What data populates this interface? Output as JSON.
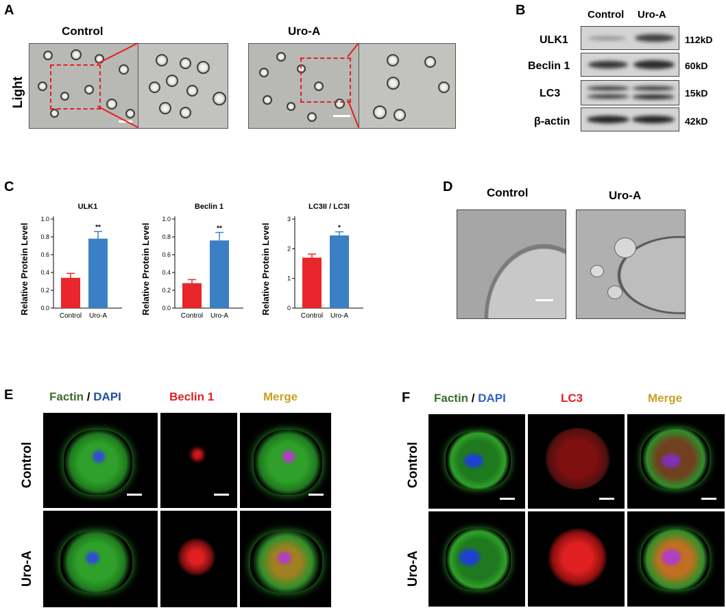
{
  "panels": {
    "A": {
      "label": "A",
      "control": "Control",
      "uroa": "Uro-A",
      "rowlabel": "Light"
    },
    "B": {
      "label": "B",
      "cols": [
        "Control",
        "Uro-A"
      ],
      "rows": [
        {
          "protein": "ULK1",
          "kd": "112kD"
        },
        {
          "protein": "Beclin 1",
          "kd": "60kD"
        },
        {
          "protein": "LC3",
          "kd": "15kD"
        },
        {
          "protein": "β-actin",
          "kd": "42kD"
        }
      ]
    },
    "C": {
      "label": "C"
    },
    "D": {
      "label": "D",
      "control": "Control",
      "uroa": "Uro-A"
    },
    "E": {
      "label": "E",
      "h_factin": "Factin",
      "h_slash": " / ",
      "h_dapi": "DAPI",
      "h_marker": "Beclin 1",
      "h_merge": "Merge",
      "row1": "Control",
      "row2": "Uro-A"
    },
    "F": {
      "label": "F",
      "h_factin": "Factin",
      "h_slash": " / ",
      "h_dapi": "DAPI",
      "h_marker": "LC3",
      "h_merge": "Merge",
      "row1": "Control",
      "row2": "Uro-A"
    }
  },
  "colors": {
    "control_bar": "#e8262b",
    "uroa_bar": "#3b7fc4",
    "factin": "#3c6e2a",
    "dapi": "#1f4e9a",
    "marker": "#e02020",
    "merge": "#c8a020"
  },
  "chart_data": [
    {
      "type": "bar",
      "title": "ULK1",
      "ylabel": "Relative Protein Level",
      "categories": [
        "Control",
        "Uro-A"
      ],
      "values": [
        0.34,
        0.78
      ],
      "errors": [
        0.05,
        0.08
      ],
      "ylim": [
        0,
        1.0
      ],
      "yticks": [
        "0.0",
        "0.2",
        "0.4",
        "0.6",
        "0.8",
        "1.0"
      ],
      "tickvals": [
        0,
        0.2,
        0.4,
        0.6,
        0.8,
        1.0
      ],
      "significance": [
        "",
        "**"
      ]
    },
    {
      "type": "bar",
      "title": "Beclin 1",
      "ylabel": "Relative Protein Level",
      "categories": [
        "Control",
        "Uro-A"
      ],
      "values": [
        0.28,
        0.76
      ],
      "errors": [
        0.04,
        0.09
      ],
      "ylim": [
        0,
        1.0
      ],
      "yticks": [
        "0.0",
        "0.2",
        "0.4",
        "0.6",
        "0.8",
        "1.0"
      ],
      "tickvals": [
        0,
        0.2,
        0.4,
        0.6,
        0.8,
        1.0
      ],
      "significance": [
        "",
        "**"
      ]
    },
    {
      "type": "bar",
      "title": "LC3II / LC3I",
      "ylabel": "Relative Protein Level",
      "categories": [
        "Control",
        "Uro-A"
      ],
      "values": [
        1.7,
        2.45
      ],
      "errors": [
        0.12,
        0.12
      ],
      "ylim": [
        0,
        3
      ],
      "yticks": [
        "0",
        "1",
        "2",
        "3"
      ],
      "tickvals": [
        0,
        1,
        2,
        3
      ],
      "significance": [
        "",
        "*"
      ]
    }
  ]
}
